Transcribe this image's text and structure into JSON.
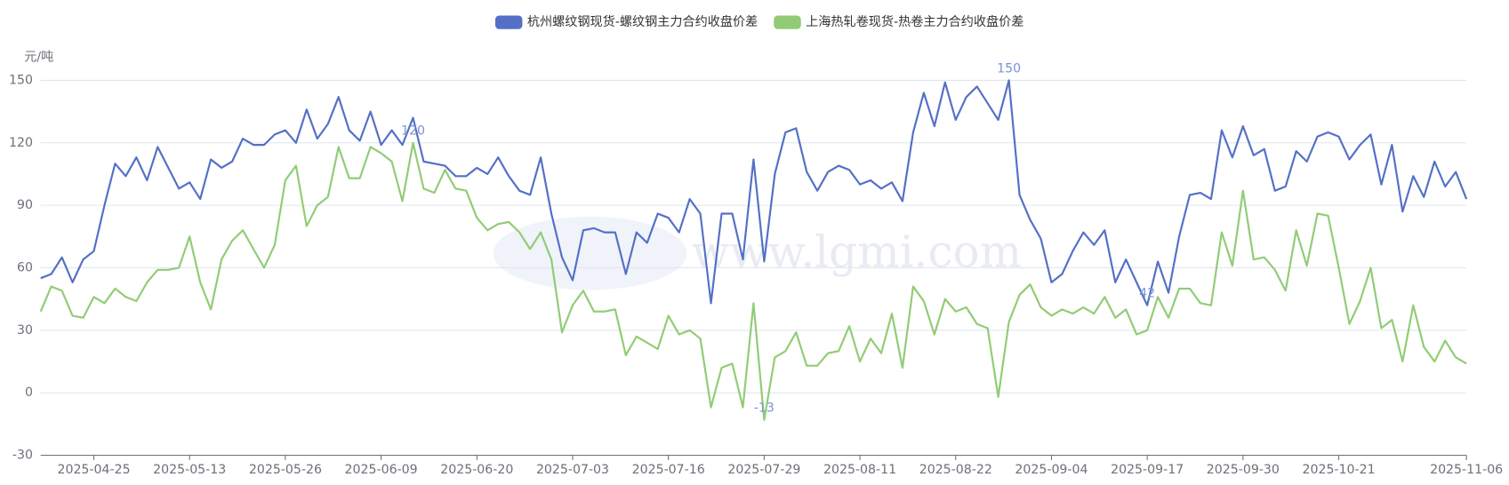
{
  "chart_data": {
    "type": "line",
    "unit_label": "元/吨",
    "watermark": "www.lgmi.com",
    "categories": [
      null,
      null,
      null,
      null,
      null,
      "2025-04-25",
      null,
      null,
      null,
      null,
      null,
      null,
      null,
      null,
      "2025-05-13",
      null,
      null,
      null,
      null,
      null,
      null,
      null,
      null,
      "2025-05-26",
      null,
      null,
      null,
      null,
      null,
      null,
      null,
      null,
      "2025-06-09",
      null,
      null,
      null,
      null,
      null,
      null,
      null,
      null,
      "2025-06-20",
      null,
      null,
      null,
      null,
      null,
      null,
      null,
      null,
      "2025-07-03",
      null,
      null,
      null,
      null,
      null,
      null,
      null,
      null,
      "2025-07-16",
      null,
      null,
      null,
      null,
      null,
      null,
      null,
      null,
      "2025-07-29",
      null,
      null,
      null,
      null,
      null,
      null,
      null,
      null,
      "2025-08-11",
      null,
      null,
      null,
      null,
      null,
      null,
      null,
      null,
      "2025-08-22",
      null,
      null,
      null,
      null,
      null,
      null,
      null,
      null,
      "2025-09-04",
      null,
      null,
      null,
      null,
      null,
      null,
      null,
      null,
      "2025-09-17",
      null,
      null,
      null,
      null,
      null,
      null,
      null,
      null,
      "2025-09-30",
      null,
      null,
      null,
      null,
      null,
      null,
      null,
      null,
      "2025-10-21",
      null,
      null,
      null,
      null,
      null,
      null,
      null,
      null,
      null,
      null,
      null,
      "2025-11-06"
    ],
    "series": [
      {
        "name": "杭州螺纹钢现货-螺纹钢主力合约收盘价差",
        "color": "#5470c6",
        "mark_points": [
          "max",
          "min"
        ],
        "values": [
          55,
          57,
          65,
          53,
          64,
          68,
          90,
          110,
          104,
          113,
          102,
          118,
          108,
          98,
          101,
          93,
          112,
          108,
          111,
          122,
          119,
          119,
          124,
          126,
          120,
          136,
          122,
          129,
          142,
          126,
          121,
          135,
          119,
          126,
          119,
          132,
          111,
          110,
          109,
          104,
          104,
          108,
          105,
          113,
          104,
          97,
          95,
          113,
          86,
          65,
          54,
          78,
          79,
          77,
          77,
          57,
          77,
          72,
          86,
          84,
          77,
          93,
          86,
          43,
          86,
          86,
          64,
          112,
          63,
          105,
          125,
          127,
          106,
          97,
          106,
          109,
          107,
          100,
          102,
          98,
          101,
          92,
          125,
          144,
          128,
          149,
          131,
          142,
          147,
          139,
          131,
          150,
          95,
          83,
          74,
          53,
          57,
          68,
          77,
          71,
          78,
          53,
          64,
          53,
          42,
          63,
          48,
          75,
          95,
          96,
          93,
          126,
          113,
          128,
          114,
          117,
          97,
          99,
          116,
          111,
          123,
          125,
          123,
          112,
          119,
          124,
          100,
          119,
          87,
          104,
          94,
          111,
          99,
          106,
          93
        ]
      },
      {
        "name": "上海热轧卷现货-热卷主力合约收盘价差",
        "color": "#91cc75",
        "mark_points": [
          "max",
          "min"
        ],
        "values": [
          39,
          51,
          49,
          37,
          36,
          46,
          43,
          50,
          46,
          44,
          53,
          59,
          59,
          60,
          75,
          53,
          40,
          64,
          73,
          78,
          69,
          60,
          71,
          102,
          109,
          80,
          90,
          94,
          118,
          103,
          103,
          118,
          115,
          111,
          92,
          120,
          98,
          96,
          107,
          98,
          97,
          84,
          78,
          81,
          82,
          77,
          69,
          77,
          64,
          29,
          42,
          49,
          39,
          39,
          40,
          18,
          27,
          24,
          21,
          37,
          28,
          30,
          26,
          -7,
          12,
          14,
          -7,
          43,
          -13,
          17,
          20,
          29,
          13,
          13,
          19,
          20,
          32,
          15,
          26,
          19,
          38,
          12,
          51,
          44,
          28,
          45,
          39,
          41,
          33,
          31,
          -2,
          34,
          47,
          52,
          41,
          37,
          40,
          38,
          41,
          38,
          46,
          36,
          40,
          28,
          30,
          46,
          36,
          50,
          50,
          43,
          42,
          77,
          61,
          97,
          64,
          65,
          59,
          49,
          78,
          61,
          86,
          85,
          60,
          33,
          44,
          60,
          31,
          35,
          15,
          42,
          22,
          15,
          25,
          17,
          14
        ]
      }
    ],
    "mark_point_color": "#7b93d6",
    "ylim": [
      -30,
      150
    ],
    "yticks": [
      -30,
      0,
      30,
      60,
      90,
      120,
      150
    ],
    "grid": true
  }
}
